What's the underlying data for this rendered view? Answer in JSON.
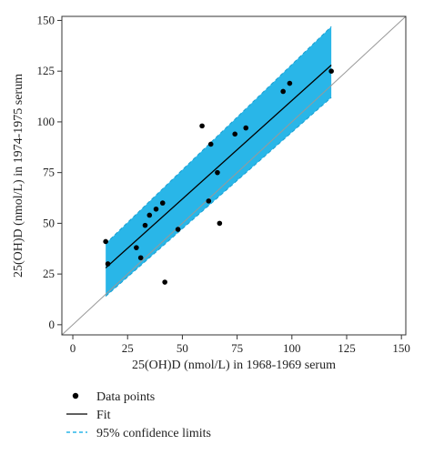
{
  "chart_data": {
    "type": "scatter",
    "xlabel": "25(OH)D (nmol/L) in 1968-1969 serum",
    "ylabel": "25(OH)D (nmol/L) in 1974-1975 serum",
    "xlim": [
      -5,
      152
    ],
    "ylim": [
      -5,
      152
    ],
    "xticks": [
      "0",
      "25",
      "50",
      "75",
      "100",
      "125",
      "150"
    ],
    "yticks": [
      "0",
      "25",
      "50",
      "75",
      "100",
      "125",
      "150"
    ],
    "grid": false,
    "legend_position": "bottom-left",
    "colors": {
      "confidence_band": "#29b6e8",
      "fit": "#000000",
      "identity": "#999999",
      "points": "#000000"
    },
    "series": [
      {
        "name": "Data points",
        "points": [
          [
            15,
            41
          ],
          [
            16,
            30
          ],
          [
            29,
            38
          ],
          [
            31,
            33
          ],
          [
            33,
            49
          ],
          [
            35,
            54
          ],
          [
            38,
            57
          ],
          [
            41,
            60
          ],
          [
            42,
            21
          ],
          [
            48,
            47
          ],
          [
            59,
            98
          ],
          [
            62,
            61
          ],
          [
            63,
            89
          ],
          [
            66,
            75
          ],
          [
            67,
            50
          ],
          [
            74,
            94
          ],
          [
            79,
            97
          ],
          [
            96,
            115
          ],
          [
            99,
            119
          ],
          [
            118,
            125
          ]
        ]
      },
      {
        "name": "Fit",
        "x": [
          15,
          118
        ],
        "y": [
          28,
          128
        ]
      },
      {
        "name": "95% confidence limits",
        "x": [
          15,
          118
        ],
        "lower": [
          14,
          112
        ],
        "upper": [
          40,
          147
        ]
      }
    ],
    "identity_line": {
      "x": [
        -5,
        152
      ],
      "y": [
        -5,
        152
      ]
    }
  }
}
